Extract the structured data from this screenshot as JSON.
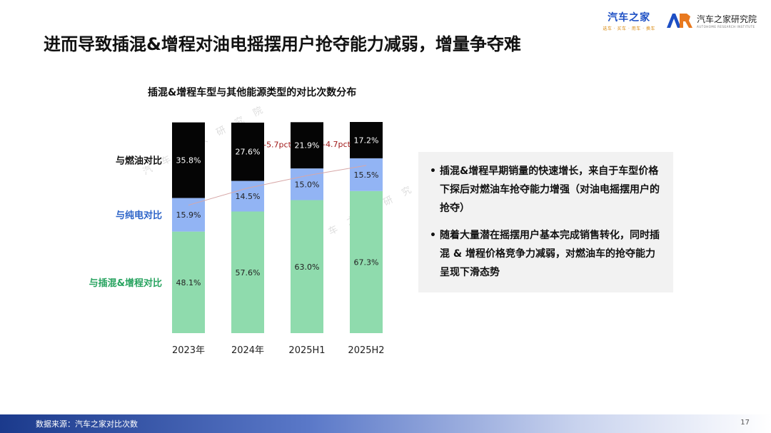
{
  "header": {
    "logo1_main": "汽车之家",
    "logo1_sub": "选车 · 买车 · 用车 · 换车",
    "logo2_name": "汽车之家研究院",
    "logo2_en": "AUTOHOME RESEARCH INSTITUTE"
  },
  "page_title": "进而导致插混&增程对油电摇摆用户抢夺能力减弱，增量争夺难",
  "watermark": [
    "汽 车 之 家 研 究 院",
    "汽 车 之 家 研 究 院"
  ],
  "chart_data": {
    "type": "bar",
    "stacked": true,
    "title": "插混&增程车型与其他能源类型的对比次数分布",
    "categories": [
      "2023年",
      "2024年",
      "2025H1",
      "2025H2"
    ],
    "ylim": [
      0,
      100
    ],
    "series": [
      {
        "name": "与插混&增程对比",
        "values": [
          48.1,
          57.6,
          63.0,
          67.3
        ],
        "labels": [
          "48.1%",
          "57.6%",
          "63.0%",
          "67.3%"
        ],
        "color": "#8fdbad",
        "label_color": "#27a35f"
      },
      {
        "name": "与纯电对比",
        "values": [
          15.9,
          14.5,
          15.0,
          15.5
        ],
        "labels": [
          "15.9%",
          "14.5%",
          "15.0%",
          "15.5%"
        ],
        "color": "#92b4f4",
        "label_color": "#2b63c8"
      },
      {
        "name": "与燃油对比",
        "values": [
          35.8,
          27.6,
          21.9,
          17.2
        ],
        "labels": [
          "35.8%",
          "27.6%",
          "21.9%",
          "17.2%"
        ],
        "color": "#050505",
        "label_color": "#111111"
      }
    ],
    "annotations": [
      {
        "between": [
          1,
          2
        ],
        "text": "-5.7pct"
      },
      {
        "between": [
          2,
          3
        ],
        "text": "-4.7pct"
      }
    ],
    "annotation_color": "#a01a1a",
    "grid": false
  },
  "bullets": [
    "插混&增程早期销量的快速增长，来自于车型价格下探后对燃油车抢夺能力增强（对油电摇摆用户的抢夺）",
    "随着大量潜在摇摆用户基本完成销售转化，同时插混 & 增程价格竞争力减弱，对燃油车的抢夺能力呈现下滑态势"
  ],
  "footer": {
    "source": "数据来源：汽车之家对比次数",
    "page": "17"
  }
}
